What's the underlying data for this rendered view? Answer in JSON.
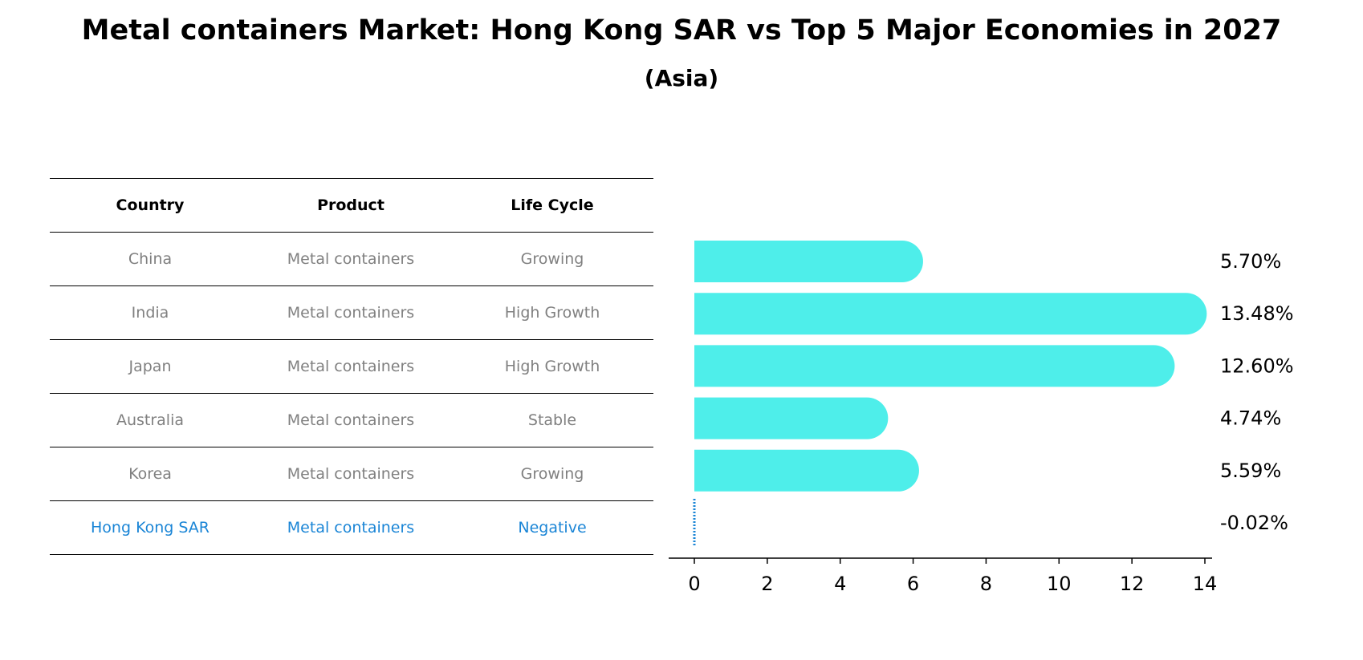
{
  "title": "Metal containers Market: Hong Kong SAR vs Top 5 Major Economies in 2027",
  "subtitle": "(Asia)",
  "table": {
    "headers": [
      "Country",
      "Product",
      "Life Cycle"
    ],
    "rows": [
      [
        "China",
        "Metal containers",
        "Growing"
      ],
      [
        "India",
        "Metal containers",
        "High Growth"
      ],
      [
        "Japan",
        "Metal containers",
        "High Growth"
      ],
      [
        "Australia",
        "Metal containers",
        "Stable"
      ],
      [
        "Korea",
        "Metal containers",
        "Growing"
      ],
      [
        "Hong Kong SAR",
        "Metal containers",
        "Negative"
      ]
    ],
    "highlight_row": 5,
    "highlight_color": "#1a85d6",
    "text_color": "#808080"
  },
  "chart_data": {
    "type": "bar",
    "orientation": "horizontal",
    "categories": [
      "China",
      "India",
      "Japan",
      "Australia",
      "Korea",
      "Hong Kong SAR"
    ],
    "values": [
      5.7,
      13.48,
      12.6,
      4.74,
      5.59,
      -0.02
    ],
    "value_labels": [
      "5.70%",
      "13.48%",
      "12.60%",
      "4.74%",
      "5.59%",
      "-0.02%"
    ],
    "xlim": [
      0,
      14
    ],
    "xticks": [
      "0",
      "2",
      "4",
      "6",
      "8",
      "10",
      "12",
      "14"
    ],
    "bar_color": "#4eeeea",
    "highlight_color": "#1a85d6",
    "grid": false
  }
}
